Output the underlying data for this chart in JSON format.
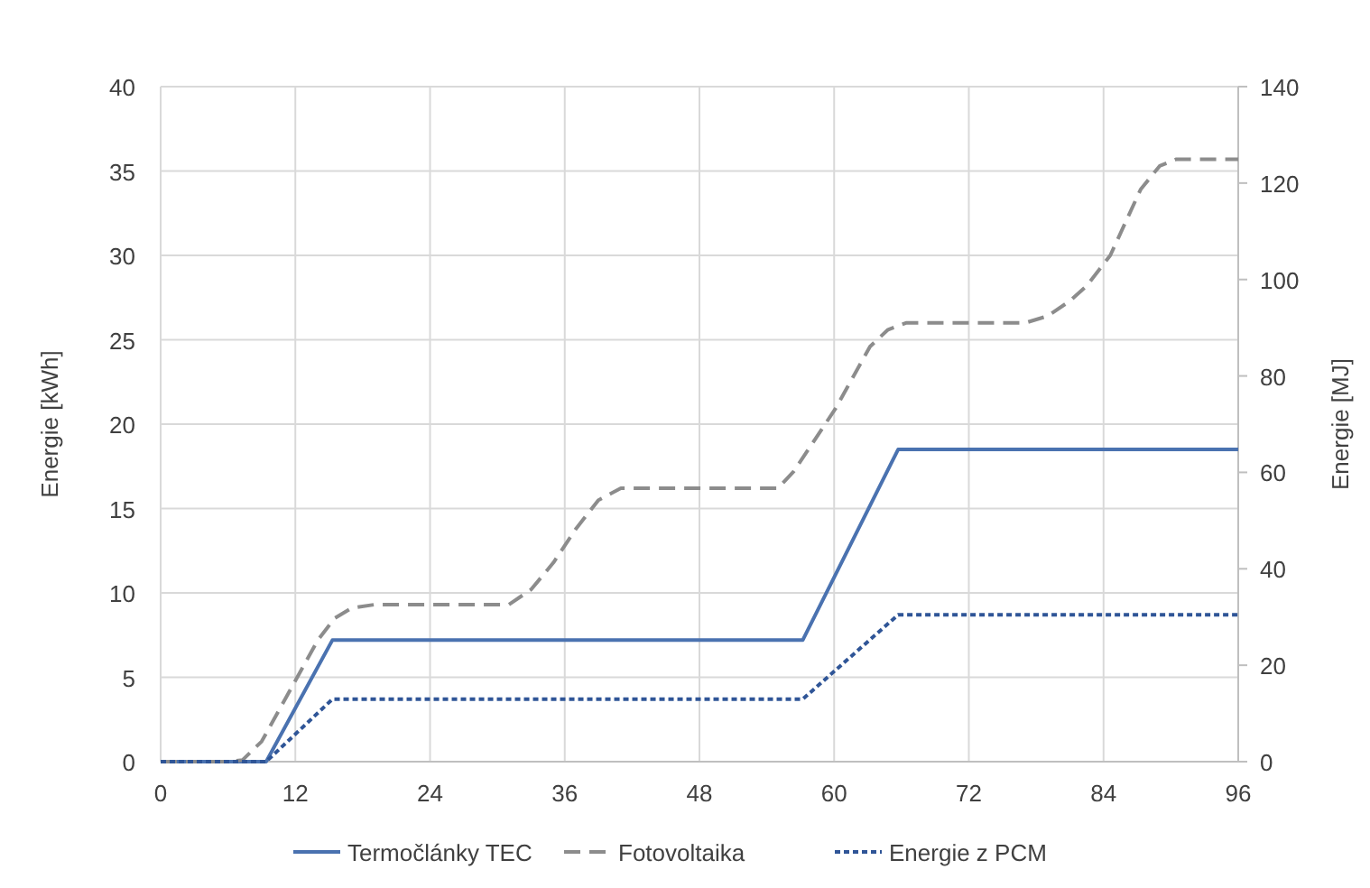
{
  "chart_data": {
    "type": "line",
    "ylabel": "Energie [kWh]",
    "y2label": "Energie [MJ]",
    "xlim": [
      0,
      96
    ],
    "xticks": [
      0,
      12,
      24,
      36,
      48,
      60,
      72,
      84,
      96
    ],
    "ylim": [
      0,
      40
    ],
    "yticks": [
      0,
      5,
      10,
      15,
      20,
      25,
      30,
      35,
      40
    ],
    "y2lim": [
      0,
      140
    ],
    "y2ticks": [
      0,
      20,
      40,
      60,
      80,
      100,
      120,
      140
    ],
    "grid": true,
    "legend": "bottom",
    "series": [
      {
        "name": "Termočlánky TEC",
        "color": "#4a72b0",
        "line_style": "solid",
        "x": [
          0,
          9.4,
          15.3,
          57.2,
          65.7,
          96
        ],
        "values": [
          0,
          0,
          7.2,
          7.2,
          18.5,
          18.5
        ]
      },
      {
        "name": "Fotovoltaika",
        "color": "#8c8c8c",
        "line_style": "dashed",
        "x": [
          0,
          6,
          7.3,
          9,
          12,
          14,
          15.5,
          17,
          19,
          31,
          33,
          35,
          37,
          39,
          41,
          55,
          56.4,
          60.1,
          63.2,
          64.8,
          66.4,
          77,
          79,
          81,
          82.5,
          84.6,
          87.3,
          89,
          90.5,
          96
        ],
        "values": [
          0,
          0,
          0.1,
          1.2,
          4.8,
          7.2,
          8.5,
          9.1,
          9.3,
          9.3,
          10.2,
          11.8,
          13.8,
          15.5,
          16.2,
          16.2,
          17.2,
          20.9,
          24.6,
          25.6,
          26,
          26,
          26.4,
          27.3,
          28.2,
          30,
          33.9,
          35.3,
          35.7,
          35.7
        ]
      },
      {
        "name": "Energie z PCM",
        "color": "#2f5597",
        "line_style": "dotted",
        "x": [
          0,
          9.4,
          15.3,
          57.2,
          65.7,
          96
        ],
        "values": [
          0,
          0,
          3.7,
          3.7,
          8.7,
          8.7
        ]
      }
    ]
  }
}
